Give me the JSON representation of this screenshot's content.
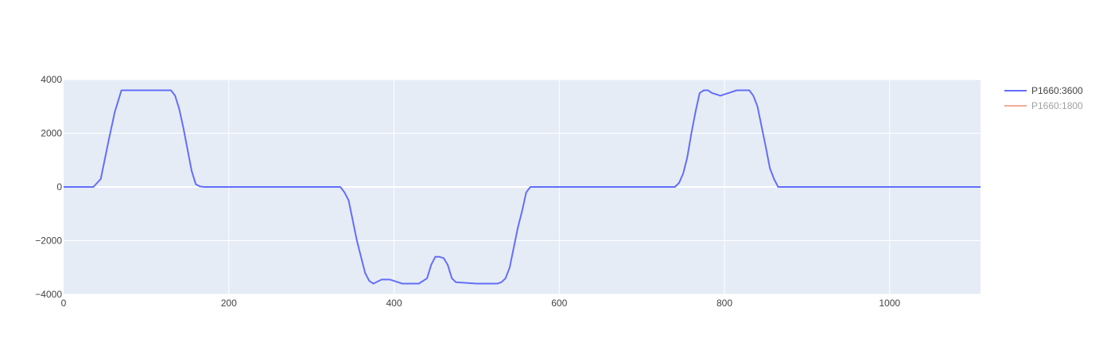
{
  "chart_data": {
    "type": "line",
    "title": "",
    "xlabel": "",
    "ylabel": "",
    "xlim": [
      0,
      1110
    ],
    "ylim": [
      -4000,
      4000
    ],
    "xticks": [
      0,
      200,
      400,
      600,
      800,
      1000
    ],
    "yticks": [
      -4000,
      -2000,
      0,
      2000,
      4000
    ],
    "ytick_labels": [
      "−4000",
      "−2000",
      "0",
      "2000",
      "4000"
    ],
    "grid": true,
    "legend_position": "top-right",
    "plot_background": "#E5ECF6",
    "series": [
      {
        "name": "P1660:3600",
        "color": "#636EFA",
        "visible": true,
        "x": [
          0,
          36,
          45,
          55,
          62,
          70,
          80,
          100,
          120,
          130,
          135,
          140,
          145,
          155,
          160,
          165,
          170,
          200,
          250,
          300,
          330,
          335,
          340,
          345,
          355,
          365,
          370,
          375,
          385,
          395,
          405,
          410,
          420,
          430,
          440,
          445,
          450,
          455,
          460,
          465,
          470,
          475,
          500,
          525,
          530,
          535,
          540,
          550,
          555,
          560,
          565,
          600,
          700,
          735,
          740,
          745,
          750,
          755,
          760,
          765,
          770,
          775,
          780,
          785,
          790,
          795,
          800,
          805,
          810,
          815,
          820,
          825,
          830,
          835,
          840,
          850,
          855,
          860,
          865,
          900,
          1000,
          1110
        ],
        "y": [
          0,
          0,
          300,
          1800,
          2800,
          3600,
          3600,
          3600,
          3600,
          3600,
          3400,
          2900,
          2200,
          600,
          100,
          20,
          0,
          0,
          0,
          0,
          0,
          0,
          -200,
          -500,
          -2000,
          -3200,
          -3500,
          -3600,
          -3450,
          -3450,
          -3550,
          -3600,
          -3600,
          -3600,
          -3400,
          -2900,
          -2600,
          -2600,
          -2650,
          -2900,
          -3400,
          -3550,
          -3600,
          -3600,
          -3550,
          -3400,
          -3000,
          -1500,
          -900,
          -200,
          0,
          0,
          0,
          0,
          0,
          150,
          500,
          1100,
          2000,
          2800,
          3500,
          3600,
          3600,
          3500,
          3450,
          3400,
          3450,
          3500,
          3550,
          3600,
          3600,
          3600,
          3600,
          3400,
          3000,
          1500,
          700,
          300,
          0,
          0,
          0,
          0
        ]
      },
      {
        "name": "P1660:1800",
        "color": "#EF553B",
        "visible": false,
        "x": [],
        "y": []
      }
    ]
  }
}
